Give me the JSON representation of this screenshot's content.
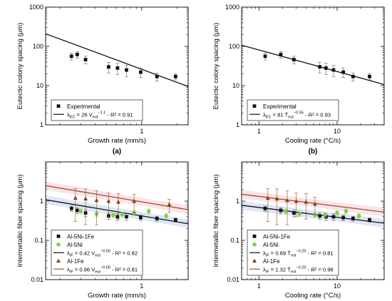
{
  "chart_data": [
    {
      "type": "scatter",
      "panel_label": "(a)",
      "xlabel": "Growth rate (mm/s)",
      "ylabel": "Eutectic colony spacing (μm)",
      "xscale": "log",
      "yscale": "log",
      "xlim": [
        0.15,
        2.5
      ],
      "ylim": [
        1,
        1000
      ],
      "xticks": [
        {
          "v": 1,
          "label": "1"
        }
      ],
      "yticks": [
        {
          "v": 1,
          "label": "1"
        },
        {
          "v": 10,
          "label": "10"
        },
        {
          "v": 100,
          "label": "100"
        },
        {
          "v": 1000,
          "label": "1000"
        }
      ],
      "grid": false,
      "legend_position": "bottom-left",
      "series": [
        {
          "name": "Experimental",
          "marker": "square",
          "color": "#111111",
          "x": [
            0.25,
            0.28,
            0.33,
            0.52,
            0.62,
            0.74,
            0.98,
            1.35,
            1.95
          ],
          "y": [
            56,
            62,
            46,
            30,
            28,
            25,
            22,
            17,
            17
          ],
          "err": [
            11,
            12,
            10,
            9,
            9,
            8,
            6,
            4,
            3
          ]
        }
      ],
      "fits": [
        {
          "legend": {
            "sym": "λ",
            "sub": "EC",
            "mid": " = 26 V",
            "sub2": "eut",
            "sup": "−1.1",
            "tail": " - R² = 0.91"
          },
          "coef": 26,
          "exp": -1.1,
          "x_range": [
            0.15,
            2.5
          ],
          "color": "#111111",
          "band": false
        }
      ]
    },
    {
      "type": "scatter",
      "panel_label": "(b)",
      "xlabel": "Cooling rate (°C/s)",
      "ylabel": "Eutectic colony spacing (μm)",
      "xscale": "log",
      "yscale": "log",
      "xlim": [
        0.6,
        40
      ],
      "ylim": [
        1,
        1000
      ],
      "xticks": [
        {
          "v": 1,
          "label": "1"
        },
        {
          "v": 10,
          "label": "10"
        }
      ],
      "yticks": [
        {
          "v": 1,
          "label": "1"
        },
        {
          "v": 10,
          "label": "10"
        },
        {
          "v": 100,
          "label": "100"
        },
        {
          "v": 1000,
          "label": "1000"
        }
      ],
      "grid": false,
      "legend_position": "bottom-left",
      "series": [
        {
          "name": "Experimental",
          "marker": "square",
          "color": "#111111",
          "x": [
            1.2,
            1.9,
            2.8,
            6.0,
            7.2,
            9.0,
            12.0,
            16.0,
            26.0
          ],
          "y": [
            56,
            62,
            46,
            30,
            28,
            25,
            22,
            17,
            17
          ],
          "err": [
            11,
            12,
            10,
            9,
            9,
            8,
            6,
            4,
            3
          ]
        }
      ],
      "fits": [
        {
          "legend": {
            "sym": "λ",
            "sub": "EC",
            "mid": " = 81 Ṫ",
            "sub2": "eut",
            "sup": "−0.55",
            "tail": " - R² = 0.93"
          },
          "coef": 81,
          "exp": -0.55,
          "x_range": [
            0.6,
            40
          ],
          "color": "#111111",
          "band": false
        }
      ]
    },
    {
      "type": "scatter",
      "panel_label": "(c)",
      "xlabel": "Growth rate (mm/s)",
      "ylabel": "Intermetallic fiber spacing (μm)",
      "xscale": "log",
      "yscale": "log",
      "xlim": [
        0.15,
        2.5
      ],
      "ylim": [
        0.01,
        10
      ],
      "xticks": [
        {
          "v": 1,
          "label": "1"
        }
      ],
      "yticks": [
        {
          "v": 0.01,
          "label": "0.01"
        },
        {
          "v": 0.1,
          "label": "0.1"
        },
        {
          "v": 1,
          "label": "1"
        }
      ],
      "grid": false,
      "legend_position": "bottom-left",
      "series": [
        {
          "name": "Al-5Ni-1Fe",
          "marker": "square",
          "color": "#111111",
          "x": [
            0.25,
            0.28,
            0.33,
            0.52,
            0.62,
            0.74,
            0.98,
            1.35,
            1.95
          ],
          "y": [
            0.65,
            0.58,
            0.5,
            0.42,
            0.4,
            0.4,
            0.38,
            0.36,
            0.33
          ],
          "err": [
            0.1,
            0.1,
            0.1,
            0.08,
            0.08,
            0.08,
            0.06,
            0.05,
            0.04
          ]
        },
        {
          "name": "Al-5Ni",
          "marker": "circle",
          "color": "#7ed04b",
          "x": [
            0.3,
            0.41,
            0.57,
            0.68,
            0.86,
            1.15,
            1.62
          ],
          "y": [
            0.55,
            0.47,
            0.44,
            0.45,
            0.5,
            0.55,
            0.42
          ],
          "err": [
            0.08,
            0.07,
            0.06,
            0.06,
            0.07,
            0.08,
            0.06
          ]
        },
        {
          "name": "Al-1Fe",
          "marker": "triangle",
          "color": "#8b4513",
          "x": [
            0.27,
            0.33,
            0.41,
            0.52,
            0.63,
            0.86,
            1.72
          ],
          "y": [
            1.2,
            1.15,
            1.05,
            1.0,
            0.95,
            1.0,
            0.82
          ],
          "err": [
            0.9,
            0.9,
            0.8,
            0.6,
            0.6,
            0.5,
            0.3
          ]
        }
      ],
      "fits": [
        {
          "legend": {
            "sym": "λ",
            "sub": "IF",
            "mid": " = 0.42 V",
            "sub2": "eut",
            "sup": "−0.50",
            "tail": " - R² = 0.82"
          },
          "coef": 0.42,
          "exp": -0.5,
          "x_range": [
            0.15,
            2.5
          ],
          "color": "#111111",
          "band": true,
          "band_color": "#b7c9ee"
        },
        {
          "legend": {
            "sym": "λ",
            "sub": "IF",
            "mid": " = 0.96 V",
            "sub2": "eut",
            "sup": "−0.50",
            "tail": " - R² = 0.81"
          },
          "coef": 0.96,
          "exp": -0.5,
          "x_range": [
            0.15,
            2.5
          ],
          "color": "#a0522d",
          "band": true,
          "band_color": "#f3c0cd"
        }
      ]
    },
    {
      "type": "scatter",
      "panel_label": "(d)",
      "xlabel": "Cooling rate (°C/s)",
      "ylabel": "Intermetallic fiber spacing (μm)",
      "xscale": "log",
      "yscale": "log",
      "xlim": [
        0.6,
        40
      ],
      "ylim": [
        0.01,
        10
      ],
      "xticks": [
        {
          "v": 1,
          "label": "1"
        },
        {
          "v": 10,
          "label": "10"
        }
      ],
      "yticks": [
        {
          "v": 0.01,
          "label": "0.01"
        },
        {
          "v": 0.1,
          "label": "0.1"
        },
        {
          "v": 1,
          "label": "1"
        }
      ],
      "grid": false,
      "legend_position": "bottom-left",
      "series": [
        {
          "name": "Al-5Ni-1Fe",
          "marker": "square",
          "color": "#111111",
          "x": [
            1.2,
            1.9,
            2.8,
            6.0,
            7.2,
            9.0,
            12.0,
            16.0,
            26.0
          ],
          "y": [
            0.65,
            0.58,
            0.5,
            0.42,
            0.4,
            0.4,
            0.38,
            0.36,
            0.33
          ],
          "err": [
            0.1,
            0.1,
            0.1,
            0.08,
            0.08,
            0.08,
            0.06,
            0.05,
            0.04
          ]
        },
        {
          "name": "Al-5Ni",
          "marker": "circle",
          "color": "#7ed04b",
          "x": [
            2.2,
            3.3,
            5.2,
            7.0,
            10.0,
            13.0,
            19.0
          ],
          "y": [
            0.55,
            0.47,
            0.44,
            0.45,
            0.5,
            0.55,
            0.42
          ],
          "err": [
            0.08,
            0.07,
            0.06,
            0.06,
            0.07,
            0.08,
            0.06
          ]
        },
        {
          "name": "Al-1Fe",
          "marker": "triangle",
          "color": "#8b4513",
          "x": [
            1.3,
            1.7,
            2.3,
            3.0,
            4.0,
            5.2
          ],
          "y": [
            1.2,
            1.15,
            1.05,
            1.0,
            0.95,
            0.85
          ],
          "err": [
            0.9,
            0.9,
            0.8,
            0.6,
            0.6,
            0.4
          ]
        }
      ],
      "fits": [
        {
          "legend": {
            "sym": "λ",
            "sub": "IF",
            "mid": " = 0.69 Ṫ",
            "sub2": "eut",
            "sup": "−0.25",
            "tail": " - R² = 0.81"
          },
          "coef": 0.69,
          "exp": -0.25,
          "x_range": [
            0.6,
            40
          ],
          "color": "#111111",
          "band": true,
          "band_color": "#b7c9ee"
        },
        {
          "legend": {
            "sym": "λ",
            "sub": "IF",
            "mid": " = 1.32 Ṫ",
            "sub2": "eut",
            "sup": "−0.25",
            "tail": " - R² = 0.98"
          },
          "coef": 1.32,
          "exp": -0.25,
          "x_range": [
            0.6,
            40
          ],
          "color": "#a0522d",
          "band": true,
          "band_color": "#f3c0cd"
        }
      ]
    }
  ]
}
